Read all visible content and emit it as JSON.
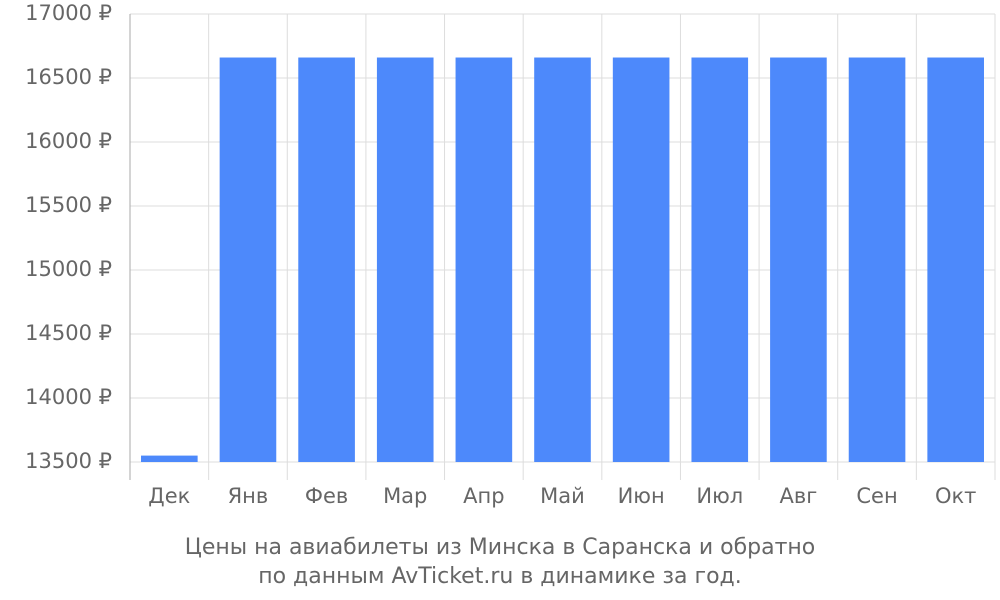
{
  "chart_data": {
    "type": "bar",
    "caption": [
      "Цены на авиабилеты из Минска в Саранска и обратно",
      "по данным AvTicket.ru в динамике за год."
    ],
    "categories": [
      "Дек",
      "Янв",
      "Фев",
      "Мар",
      "Апр",
      "Май",
      "Июн",
      "Июл",
      "Авг",
      "Сен",
      "Окт"
    ],
    "values": [
      13550,
      16660,
      16660,
      16660,
      16660,
      16660,
      16660,
      16660,
      16660,
      16660,
      16660
    ],
    "color": "#4d89fb",
    "ylim": [
      13500,
      17000
    ],
    "yticks": [
      {
        "value": 13500,
        "label": "13500 ₽"
      },
      {
        "value": 14000,
        "label": "14000 ₽"
      },
      {
        "value": 14500,
        "label": "14500 ₽"
      },
      {
        "value": 15000,
        "label": "15000 ₽"
      },
      {
        "value": 15500,
        "label": "15500 ₽"
      },
      {
        "value": 16000,
        "label": "16000 ₽"
      },
      {
        "value": 16500,
        "label": "16500 ₽"
      },
      {
        "value": 17000,
        "label": "17000 ₽"
      }
    ],
    "grid": true
  }
}
